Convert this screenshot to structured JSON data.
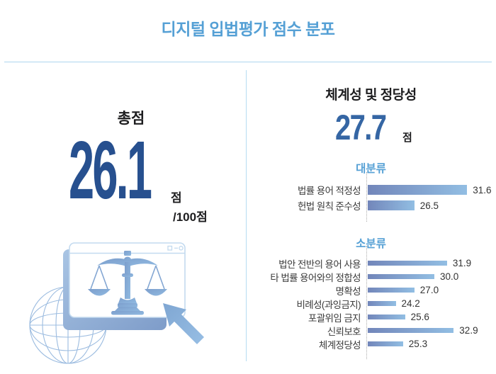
{
  "title": "디지털 입법평가 점수 분포",
  "colors": {
    "title_blue": "#55A0D5",
    "total_score_navy": "#27508F",
    "sub_score_blue": "#3566A4",
    "category_label_blue": "#55A0D5",
    "bar_gradient_start": "#7286BA",
    "bar_gradient_end": "#92BEE3",
    "divider_blue": "#ADD6EE",
    "text_dark": "#1D1D1F"
  },
  "left_panel": {
    "label": "총점",
    "score": "26.1",
    "unit": "점",
    "denominator": "/100점",
    "illustration_icons": [
      "globe-icon",
      "browser-window-icon",
      "window-controls-icon",
      "justice-scales-icon",
      "cursor-arrow-icon"
    ]
  },
  "right_panel": {
    "title": "체계성 및 정당성",
    "score": "27.7",
    "unit": "점",
    "groups": [
      {
        "label": "대분류",
        "bars": [
          {
            "label": "법률 용어 적정성",
            "value": "31.6"
          },
          {
            "label": "헌법 원칙 준수성",
            "value": "26.5"
          }
        ]
      },
      {
        "label": "소분류",
        "bars": [
          {
            "label": "법안 전반의 용어 사용",
            "value": "31.9"
          },
          {
            "label": "타 법률 용어와의 정합성",
            "value": "30.0"
          },
          {
            "label": "명확성",
            "value": "27.0"
          },
          {
            "label": "비례성(과잉금지)",
            "value": "24.2"
          },
          {
            "label": "포괄위임 금지",
            "value": "25.6"
          },
          {
            "label": "신뢰보호",
            "value": "32.9"
          },
          {
            "label": "체계정당성",
            "value": "25.3"
          }
        ]
      }
    ]
  },
  "chart_data": [
    {
      "type": "bar",
      "orientation": "horizontal",
      "title": "대분류",
      "categories": [
        "법률 용어 적정성",
        "헌법 원칙 준수성"
      ],
      "values": [
        31.6,
        26.5
      ],
      "value_labels": true,
      "grid": false,
      "axis_baseline_hint": 22,
      "legend": "none"
    },
    {
      "type": "bar",
      "orientation": "horizontal",
      "title": "소분류",
      "categories": [
        "법안 전반의 용어 사용",
        "타 법률 용어와의 정합성",
        "명확성",
        "비례성(과잉금지)",
        "포괄위임 금지",
        "신뢰보호",
        "체계정당성"
      ],
      "values": [
        31.9,
        30.0,
        27.0,
        24.2,
        25.6,
        32.9,
        25.3
      ],
      "value_labels": true,
      "grid": false,
      "axis_baseline_hint": 20,
      "legend": "none"
    },
    {
      "type": "table",
      "title": "총점",
      "categories": [
        "총점"
      ],
      "values": [
        26.1
      ],
      "max": 100
    },
    {
      "type": "table",
      "title": "체계성 및 정당성",
      "categories": [
        "체계성 및 정당성"
      ],
      "values": [
        27.7
      ]
    }
  ]
}
